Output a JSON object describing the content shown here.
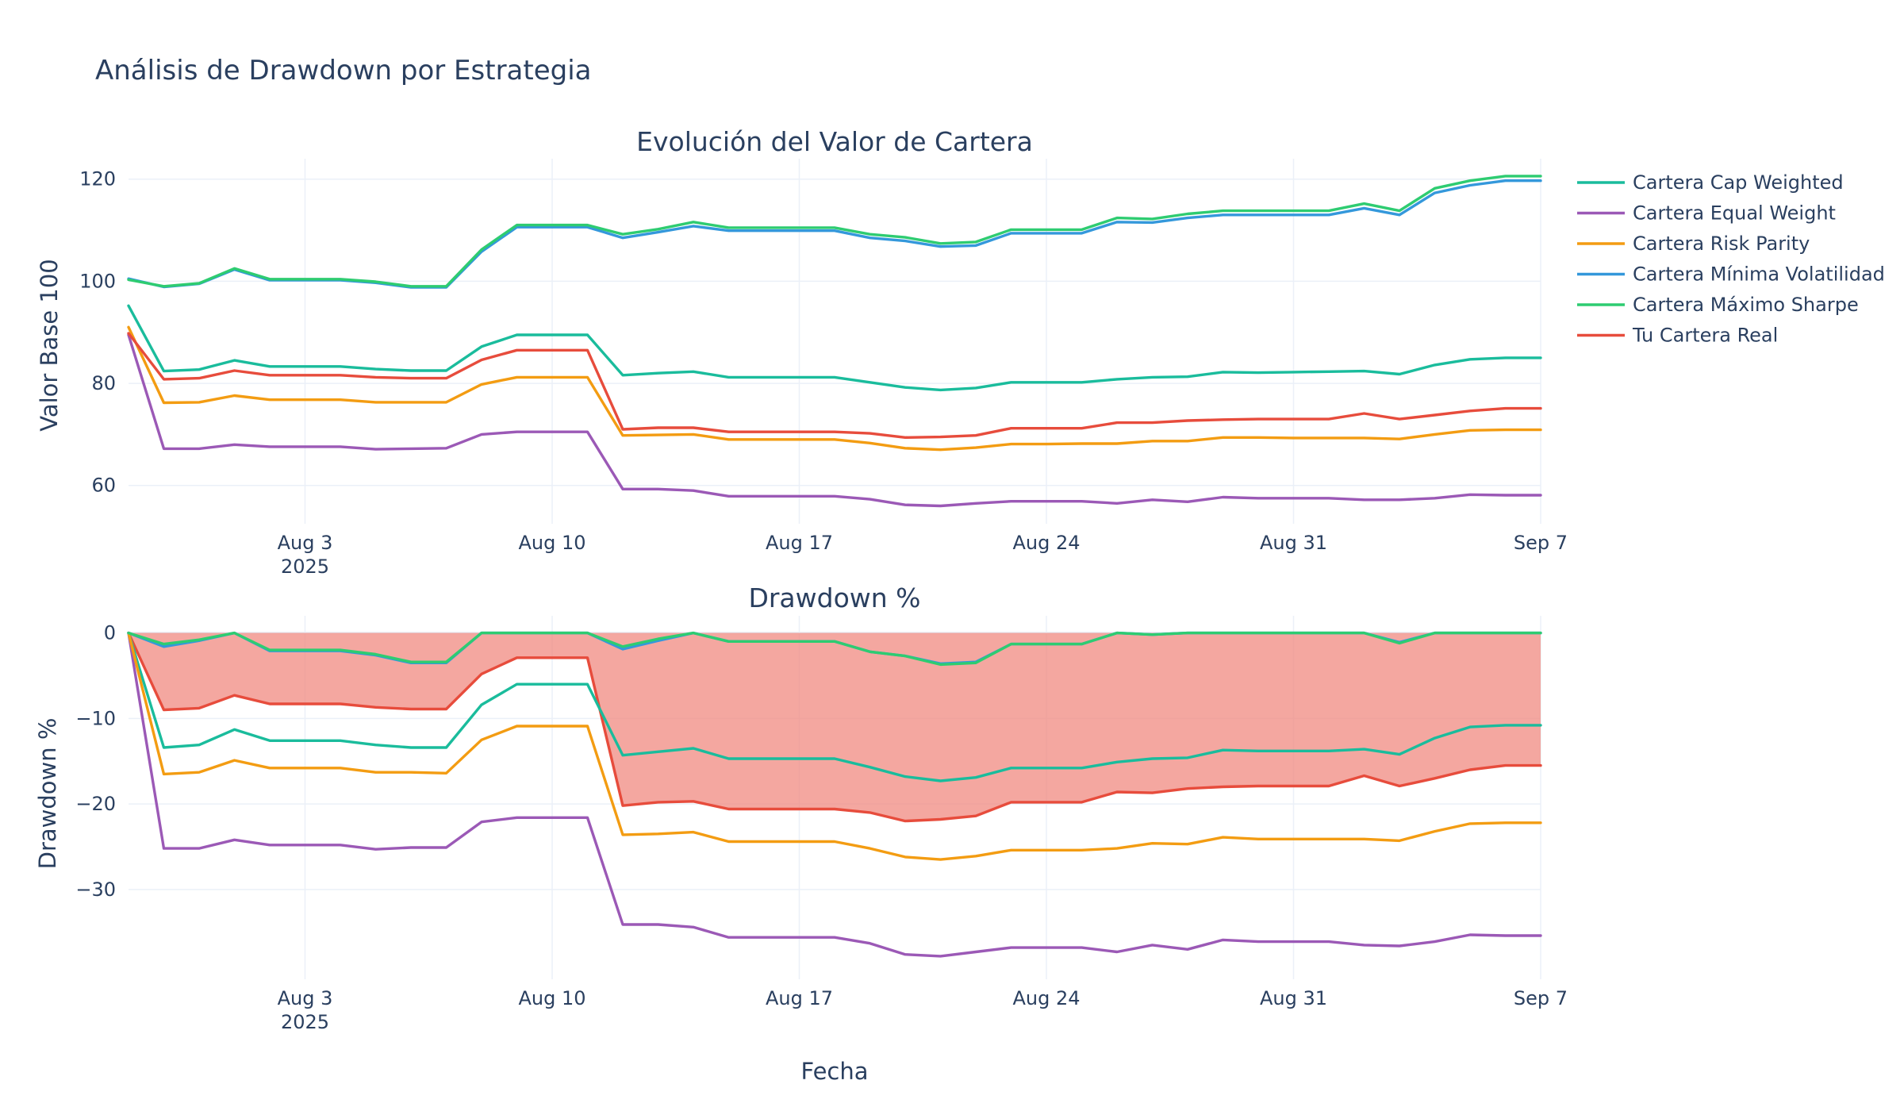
{
  "figure_title": "Análisis de Drawdown por Estrategia",
  "chart_data": [
    {
      "type": "line",
      "title": "Evolución del Valor de Cartera",
      "xlabel": "",
      "ylabel": "Valor Base 100",
      "ylim": [
        52.5,
        124
      ],
      "yticks": [
        60,
        80,
        100,
        120
      ],
      "grid": true,
      "legend": "right",
      "xlim": [
        "2025-07-29",
        "2025-09-07"
      ],
      "xticks": [
        {
          "date": "2025-08-03",
          "label": "Aug 3",
          "sublabel": "2025"
        },
        {
          "date": "2025-08-10",
          "label": "Aug 10",
          "sublabel": ""
        },
        {
          "date": "2025-08-17",
          "label": "Aug 17",
          "sublabel": ""
        },
        {
          "date": "2025-08-24",
          "label": "Aug 24",
          "sublabel": ""
        },
        {
          "date": "2025-08-31",
          "label": "Aug 31",
          "sublabel": ""
        },
        {
          "date": "2025-09-07",
          "label": "Sep 7",
          "sublabel": ""
        }
      ],
      "x": [
        "2025-07-29",
        "2025-07-30",
        "2025-07-31",
        "2025-08-01",
        "2025-08-02",
        "2025-08-03",
        "2025-08-04",
        "2025-08-05",
        "2025-08-06",
        "2025-08-07",
        "2025-08-08",
        "2025-08-09",
        "2025-08-10",
        "2025-08-11",
        "2025-08-12",
        "2025-08-13",
        "2025-08-14",
        "2025-08-15",
        "2025-08-16",
        "2025-08-17",
        "2025-08-18",
        "2025-08-19",
        "2025-08-20",
        "2025-08-21",
        "2025-08-22",
        "2025-08-23",
        "2025-08-24",
        "2025-08-25",
        "2025-08-26",
        "2025-08-27",
        "2025-08-28",
        "2025-08-29",
        "2025-08-30",
        "2025-08-31",
        "2025-09-01",
        "2025-09-02",
        "2025-09-03",
        "2025-09-04",
        "2025-09-05",
        "2025-09-06",
        "2025-09-07"
      ],
      "series": [
        {
          "name": "Cartera Cap Weighted",
          "color": "#1abc9c",
          "values": [
            95.2,
            82.4,
            82.7,
            84.5,
            83.3,
            83.3,
            83.3,
            82.8,
            82.5,
            82.5,
            87.2,
            89.5,
            89.5,
            89.5,
            81.6,
            82.0,
            82.3,
            81.2,
            81.2,
            81.2,
            81.2,
            80.2,
            79.2,
            78.7,
            79.1,
            80.2,
            80.2,
            80.2,
            80.8,
            81.2,
            81.3,
            82.2,
            82.1,
            82.2,
            82.3,
            82.4,
            81.8,
            83.6,
            84.7,
            85.0,
            85.0
          ]
        },
        {
          "name": "Cartera Equal Weight",
          "color": "#9b59b6",
          "values": [
            89.5,
            67.2,
            67.2,
            68.0,
            67.6,
            67.6,
            67.6,
            67.1,
            67.2,
            67.3,
            70.0,
            70.5,
            70.5,
            70.5,
            59.3,
            59.3,
            59.0,
            57.9,
            57.9,
            57.9,
            57.9,
            57.3,
            56.2,
            56.0,
            56.5,
            56.9,
            56.9,
            56.9,
            56.5,
            57.2,
            56.8,
            57.7,
            57.5,
            57.5,
            57.5,
            57.2,
            57.2,
            57.5,
            58.2,
            58.1,
            58.1
          ]
        },
        {
          "name": "Cartera Risk Parity",
          "color": "#f39c12",
          "values": [
            91.0,
            76.2,
            76.3,
            77.6,
            76.8,
            76.8,
            76.8,
            76.3,
            76.3,
            76.3,
            79.8,
            81.2,
            81.2,
            81.2,
            69.8,
            69.9,
            70.0,
            69.0,
            69.0,
            69.0,
            69.0,
            68.3,
            67.3,
            67.0,
            67.4,
            68.1,
            68.1,
            68.2,
            68.2,
            68.7,
            68.7,
            69.4,
            69.4,
            69.3,
            69.3,
            69.3,
            69.1,
            70.0,
            70.8,
            70.9,
            70.9
          ]
        },
        {
          "name": "Cartera Mínima Volatilidad",
          "color": "#3498db",
          "values": [
            100.5,
            98.9,
            99.5,
            102.3,
            100.2,
            100.2,
            100.2,
            99.7,
            98.8,
            98.8,
            105.8,
            110.6,
            110.6,
            110.6,
            108.5,
            109.6,
            110.8,
            109.9,
            109.9,
            109.9,
            109.9,
            108.5,
            107.9,
            106.8,
            107.0,
            109.4,
            109.4,
            109.4,
            111.6,
            111.5,
            112.4,
            113.0,
            113.0,
            113.0,
            113.0,
            114.3,
            113.0,
            117.3,
            118.8,
            119.7,
            119.7
          ]
        },
        {
          "name": "Cartera Máximo Sharpe",
          "color": "#2ecc71",
          "values": [
            100.3,
            99.0,
            99.6,
            102.5,
            100.4,
            100.4,
            100.4,
            99.9,
            99.0,
            99.0,
            106.2,
            111.0,
            111.0,
            111.0,
            109.2,
            110.2,
            111.6,
            110.5,
            110.5,
            110.5,
            110.5,
            109.2,
            108.6,
            107.4,
            107.7,
            110.1,
            110.1,
            110.1,
            112.4,
            112.2,
            113.2,
            113.8,
            113.8,
            113.8,
            113.8,
            115.2,
            113.8,
            118.2,
            119.7,
            120.6,
            120.6
          ]
        },
        {
          "name": "Tu Cartera Real",
          "color": "#e74c3c",
          "values": [
            89.8,
            80.8,
            81.0,
            82.5,
            81.6,
            81.6,
            81.6,
            81.2,
            81.0,
            81.0,
            84.6,
            86.5,
            86.5,
            86.5,
            71.0,
            71.3,
            71.3,
            70.5,
            70.5,
            70.5,
            70.5,
            70.2,
            69.4,
            69.5,
            69.8,
            71.2,
            71.2,
            71.2,
            72.3,
            72.3,
            72.7,
            72.9,
            73.0,
            73.0,
            73.0,
            74.1,
            73.0,
            73.8,
            74.6,
            75.1,
            75.1
          ]
        }
      ]
    },
    {
      "type": "area",
      "title": "Drawdown %",
      "xlabel": "Fecha",
      "ylabel": "Drawdown %",
      "ylim": [
        -40.5,
        2
      ],
      "yticks": [
        0,
        -10,
        -20,
        -30
      ],
      "grid": true,
      "fill": {
        "series": "Tu Cartera Real",
        "color": "#f08a80"
      },
      "xlim": [
        "2025-07-29",
        "2025-09-07"
      ],
      "xticks": [
        {
          "date": "2025-08-03",
          "label": "Aug 3",
          "sublabel": "2025"
        },
        {
          "date": "2025-08-10",
          "label": "Aug 10",
          "sublabel": ""
        },
        {
          "date": "2025-08-17",
          "label": "Aug 17",
          "sublabel": ""
        },
        {
          "date": "2025-08-24",
          "label": "Aug 24",
          "sublabel": ""
        },
        {
          "date": "2025-08-31",
          "label": "Aug 31",
          "sublabel": ""
        },
        {
          "date": "2025-09-07",
          "label": "Sep 7",
          "sublabel": ""
        }
      ],
      "x": [
        "2025-07-29",
        "2025-07-30",
        "2025-07-31",
        "2025-08-01",
        "2025-08-02",
        "2025-08-03",
        "2025-08-04",
        "2025-08-05",
        "2025-08-06",
        "2025-08-07",
        "2025-08-08",
        "2025-08-09",
        "2025-08-10",
        "2025-08-11",
        "2025-08-12",
        "2025-08-13",
        "2025-08-14",
        "2025-08-15",
        "2025-08-16",
        "2025-08-17",
        "2025-08-18",
        "2025-08-19",
        "2025-08-20",
        "2025-08-21",
        "2025-08-22",
        "2025-08-23",
        "2025-08-24",
        "2025-08-25",
        "2025-08-26",
        "2025-08-27",
        "2025-08-28",
        "2025-08-29",
        "2025-08-30",
        "2025-08-31",
        "2025-09-01",
        "2025-09-02",
        "2025-09-03",
        "2025-09-04",
        "2025-09-05",
        "2025-09-06",
        "2025-09-07"
      ],
      "series": [
        {
          "name": "Tu Cartera Real",
          "color": "#e74c3c",
          "values": [
            0,
            -9.0,
            -8.8,
            -7.3,
            -8.3,
            -8.3,
            -8.3,
            -8.7,
            -8.9,
            -8.9,
            -4.8,
            -2.9,
            -2.9,
            -2.9,
            -20.2,
            -19.8,
            -19.7,
            -20.6,
            -20.6,
            -20.6,
            -20.6,
            -21.0,
            -22.0,
            -21.8,
            -21.4,
            -19.8,
            -19.8,
            -19.8,
            -18.6,
            -18.7,
            -18.2,
            -18.0,
            -17.9,
            -17.9,
            -17.9,
            -16.7,
            -17.9,
            -17.0,
            -16.0,
            -15.5,
            -15.5
          ]
        },
        {
          "name": "Cartera Cap Weighted",
          "color": "#1abc9c",
          "values": [
            0,
            -13.4,
            -13.1,
            -11.3,
            -12.6,
            -12.6,
            -12.6,
            -13.1,
            -13.4,
            -13.4,
            -8.4,
            -6.0,
            -6.0,
            -6.0,
            -14.3,
            -13.9,
            -13.5,
            -14.7,
            -14.7,
            -14.7,
            -14.7,
            -15.7,
            -16.8,
            -17.3,
            -16.9,
            -15.8,
            -15.8,
            -15.8,
            -15.1,
            -14.7,
            -14.6,
            -13.7,
            -13.8,
            -13.8,
            -13.8,
            -13.6,
            -14.2,
            -12.3,
            -11.0,
            -10.8,
            -10.8
          ]
        },
        {
          "name": "Cartera Equal Weight",
          "color": "#9b59b6",
          "values": [
            0,
            -25.2,
            -25.2,
            -24.2,
            -24.8,
            -24.8,
            -24.8,
            -25.3,
            -25.1,
            -25.1,
            -22.1,
            -21.6,
            -21.6,
            -21.6,
            -34.1,
            -34.1,
            -34.4,
            -35.6,
            -35.6,
            -35.6,
            -35.6,
            -36.3,
            -37.6,
            -37.8,
            -37.3,
            -36.8,
            -36.8,
            -36.8,
            -37.3,
            -36.5,
            -37.0,
            -35.9,
            -36.1,
            -36.1,
            -36.1,
            -36.5,
            -36.6,
            -36.1,
            -35.3,
            -35.4,
            -35.4
          ]
        },
        {
          "name": "Cartera Risk Parity",
          "color": "#f39c12",
          "values": [
            0,
            -16.5,
            -16.3,
            -14.9,
            -15.8,
            -15.8,
            -15.8,
            -16.3,
            -16.3,
            -16.4,
            -12.5,
            -10.9,
            -10.9,
            -10.9,
            -23.6,
            -23.5,
            -23.3,
            -24.4,
            -24.4,
            -24.4,
            -24.4,
            -25.2,
            -26.2,
            -26.5,
            -26.1,
            -25.4,
            -25.4,
            -25.4,
            -25.2,
            -24.6,
            -24.7,
            -23.9,
            -24.1,
            -24.1,
            -24.1,
            -24.1,
            -24.3,
            -23.2,
            -22.3,
            -22.2,
            -22.2
          ]
        },
        {
          "name": "Cartera Mínima Volatilidad",
          "color": "#3498db",
          "values": [
            0,
            -1.6,
            -0.9,
            0,
            -2.1,
            -2.1,
            -2.1,
            -2.6,
            -3.5,
            -3.5,
            0,
            0,
            0,
            0,
            -1.9,
            -0.9,
            0,
            -1.0,
            -1.0,
            -1.0,
            -1.0,
            -2.2,
            -2.7,
            -3.6,
            -3.4,
            -1.3,
            -1.3,
            -1.3,
            0,
            -0.2,
            0,
            0,
            0,
            0,
            0,
            0,
            -1.1,
            0,
            0,
            0,
            0
          ]
        },
        {
          "name": "Cartera Máximo Sharpe",
          "color": "#2ecc71",
          "values": [
            0,
            -1.3,
            -0.8,
            0,
            -2.0,
            -2.0,
            -2.0,
            -2.5,
            -3.4,
            -3.4,
            0,
            0,
            0,
            0,
            -1.6,
            -0.7,
            0,
            -1.0,
            -1.0,
            -1.0,
            -1.0,
            -2.2,
            -2.7,
            -3.7,
            -3.5,
            -1.3,
            -1.3,
            -1.3,
            0,
            -0.2,
            0,
            0,
            0,
            0,
            0,
            0,
            -1.2,
            0,
            0,
            0,
            0
          ]
        }
      ]
    }
  ]
}
